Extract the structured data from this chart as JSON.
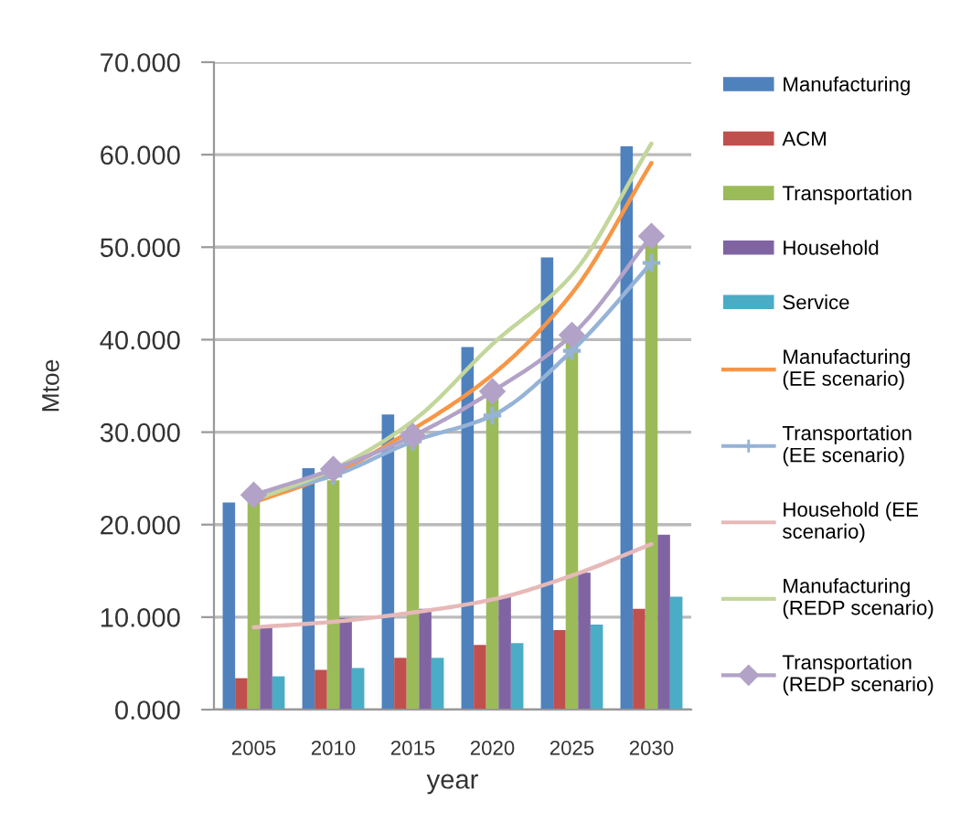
{
  "chart_data": {
    "type": "bar",
    "xlabel": "year",
    "ylabel": "Mtoe",
    "categories": [
      "2005",
      "2010",
      "2015",
      "2020",
      "2025",
      "2030"
    ],
    "ylim": [
      0,
      70
    ],
    "yticks": [
      {
        "value": 0,
        "label": "0.000"
      },
      {
        "value": 10,
        "label": "10.000"
      },
      {
        "value": 20,
        "label": "20.000"
      },
      {
        "value": 30,
        "label": "30.000"
      },
      {
        "value": 40,
        "label": "40.000"
      },
      {
        "value": 50,
        "label": "50.000"
      },
      {
        "value": 60,
        "label": "60.000"
      },
      {
        "value": 70,
        "label": "70.000"
      }
    ],
    "grid": "y",
    "legend": "right",
    "series": [
      {
        "name": "Manufacturing",
        "color": "#4f81bd",
        "values": [
          22.4,
          26.1,
          31.9,
          39.2,
          48.9,
          60.9
        ]
      },
      {
        "name": "ACM",
        "color": "#c0504d",
        "values": [
          3.4,
          4.3,
          5.6,
          7.0,
          8.6,
          10.9
        ]
      },
      {
        "name": "Transportation",
        "color": "#9bbb59",
        "values": [
          22.7,
          24.8,
          30.7,
          33.9,
          39.8,
          50.7
        ]
      },
      {
        "name": "Household",
        "color": "#8064a2",
        "values": [
          8.9,
          9.9,
          10.9,
          12.2,
          14.8,
          18.9
        ]
      },
      {
        "name": "Service",
        "color": "#4bacc6",
        "values": [
          3.6,
          4.5,
          5.6,
          7.2,
          9.2,
          12.2
        ]
      },
      {
        "name": "Manufacturing (EE scenario)",
        "type": "line",
        "color": "#f79646",
        "values": [
          22.4,
          25.5,
          30.3,
          36.2,
          45.0,
          59.1
        ]
      },
      {
        "name": "Transportation (EE scenario)",
        "type": "line",
        "color": "#95b3d7",
        "marker": "cross",
        "values": [
          23.0,
          25.3,
          29.0,
          31.8,
          38.8,
          48.3
        ]
      },
      {
        "name": "Household (EE scenario)",
        "type": "line",
        "color": "#e6b9b8",
        "values": [
          8.9,
          9.5,
          10.5,
          11.9,
          14.5,
          17.9
        ]
      },
      {
        "name": "Manufacturing (REDP scenario)",
        "type": "line",
        "color": "#c3d69b",
        "values": [
          22.6,
          26.0,
          31.2,
          39.5,
          47.0,
          61.2
        ]
      },
      {
        "name": "Transportation (REDP scenario)",
        "type": "line",
        "color": "#b3a2c7",
        "marker": "diamond",
        "values": [
          23.2,
          26.0,
          29.6,
          34.4,
          40.5,
          51.2
        ]
      }
    ]
  }
}
